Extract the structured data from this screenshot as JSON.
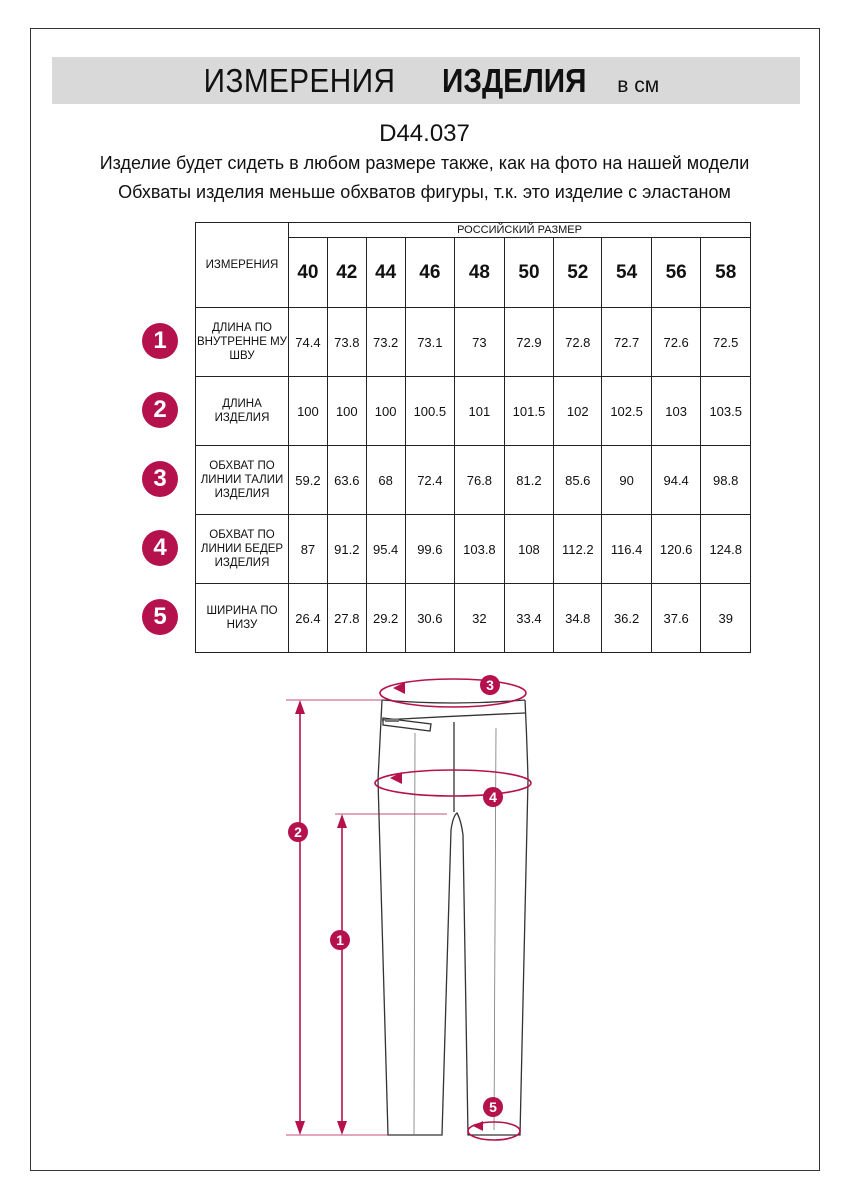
{
  "header": {
    "title_regular": "ИЗМЕРЕНИЯ",
    "title_bold": "ИЗДЕЛИЯ",
    "unit": "в см"
  },
  "article": "D44.037",
  "notes": [
    "Изделие будет сидеть в любом размере также, как на фото на нашей модели",
    "Обхваты изделия меньше обхватов фигуры, т.к. это изделие с эластаном"
  ],
  "table": {
    "measure_header": "ИЗМЕРЕНИЯ",
    "size_group_header": "РОССИЙСКИЙ РАЗМЕР",
    "sizes": [
      "40",
      "42",
      "44",
      "46",
      "48",
      "50",
      "52",
      "54",
      "56",
      "58"
    ],
    "rows": [
      {
        "num": "1",
        "label": "ДЛИНА ПО ВНУТРЕННЕ МУ ШВУ",
        "values": [
          "74.4",
          "73.8",
          "73.2",
          "73.1",
          "73",
          "72.9",
          "72.8",
          "72.7",
          "72.6",
          "72.5"
        ]
      },
      {
        "num": "2",
        "label": "ДЛИНА ИЗДЕЛИЯ",
        "values": [
          "100",
          "100",
          "100",
          "100.5",
          "101",
          "101.5",
          "102",
          "102.5",
          "103",
          "103.5"
        ]
      },
      {
        "num": "3",
        "label": "ОБХВАТ ПО ЛИНИИ ТАЛИИ ИЗДЕЛИЯ",
        "values": [
          "59.2",
          "63.6",
          "68",
          "72.4",
          "76.8",
          "81.2",
          "85.6",
          "90",
          "94.4",
          "98.8"
        ]
      },
      {
        "num": "4",
        "label": "ОБХВАТ ПО ЛИНИИ БЕДЕР ИЗДЕЛИЯ",
        "values": [
          "87",
          "91.2",
          "95.4",
          "99.6",
          "103.8",
          "108",
          "112.2",
          "116.4",
          "120.6",
          "124.8"
        ]
      },
      {
        "num": "5",
        "label": "ШИРИНА ПО НИЗУ",
        "values": [
          "26.4",
          "27.8",
          "29.2",
          "30.6",
          "32",
          "33.4",
          "34.8",
          "36.2",
          "37.6",
          "39"
        ]
      }
    ]
  },
  "diagram": {
    "markers": [
      "1",
      "2",
      "3",
      "4",
      "5"
    ]
  },
  "colors": {
    "accent": "#b5124d",
    "banner": "#d9d9d9"
  }
}
